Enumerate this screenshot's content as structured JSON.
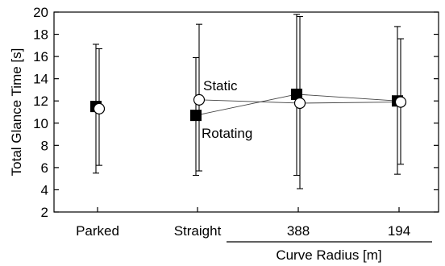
{
  "chart_data": {
    "type": "scatter",
    "title": "",
    "ylabel": "Total Glance Time [s]",
    "xlabel": "",
    "group_label": "Curve Radius [m]",
    "categories": [
      "Parked",
      "Straight",
      "388",
      "194"
    ],
    "ylim": [
      2,
      20
    ],
    "yticks": [
      2,
      4,
      6,
      8,
      10,
      12,
      14,
      16,
      18,
      20
    ],
    "grid": false,
    "series": [
      {
        "name": "Rotating",
        "marker": "square",
        "color": "#000000",
        "values": [
          11.5,
          10.7,
          12.6,
          12.0
        ],
        "error_low": [
          5.5,
          5.3,
          5.3,
          5.4
        ],
        "error_high": [
          17.1,
          15.9,
          19.8,
          18.7
        ]
      },
      {
        "name": "Static",
        "marker": "circle",
        "color": "#ffffff",
        "values": [
          11.3,
          12.1,
          11.8,
          11.9
        ],
        "error_low": [
          6.2,
          5.7,
          4.1,
          6.3
        ],
        "error_high": [
          16.7,
          18.9,
          19.6,
          17.6
        ]
      }
    ],
    "connect_from_index": 1,
    "annotations": [
      {
        "text": "Static",
        "series": "Static"
      },
      {
        "text": "Rotating",
        "series": "Rotating"
      }
    ]
  }
}
